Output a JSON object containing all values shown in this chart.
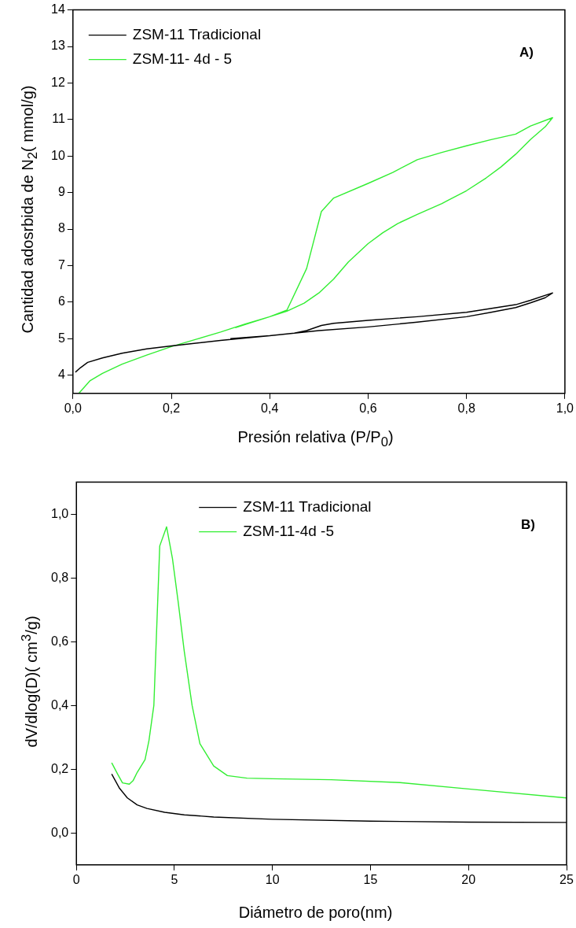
{
  "chart_data": [
    {
      "type": "line",
      "ylabel": "Cantidad adosrbida de N$_{2}$( mmol/g)",
      "xlabel": "Presión relativa (P/P$_{0}$)",
      "annotations": [
        "A)"
      ],
      "legend": "top left",
      "xlim": [
        0,
        1
      ],
      "xticks": [
        {
          "value": 0,
          "label": "0,0"
        },
        {
          "value": 0.2,
          "label": "0,2"
        },
        {
          "value": 0.4,
          "label": "0,4"
        },
        {
          "value": 0.6,
          "label": "0,6"
        },
        {
          "value": 0.8,
          "label": "0,8"
        },
        {
          "value": 1,
          "label": "1,0"
        }
      ],
      "ylim": [
        3.5,
        14
      ],
      "yticks": [
        4,
        5,
        6,
        7,
        8,
        9,
        10,
        11,
        12,
        13,
        14
      ],
      "series": [
        {
          "name": "ZSM-11 Tradicional",
          "color": "#000000",
          "x": [
            0.005,
            0.015,
            0.03,
            0.06,
            0.1,
            0.15,
            0.2,
            0.3,
            0.4,
            0.5,
            0.6,
            0.7,
            0.8,
            0.85,
            0.9,
            0.93,
            0.96,
            0.975,
            0.93,
            0.9,
            0.8,
            0.7,
            0.6,
            0.53,
            0.505,
            0.475,
            0.45,
            0.4,
            0.32
          ],
          "values": [
            4.08,
            4.2,
            4.35,
            4.47,
            4.6,
            4.72,
            4.8,
            4.95,
            5.08,
            5.22,
            5.32,
            5.45,
            5.6,
            5.72,
            5.85,
            5.98,
            6.12,
            6.25,
            6.05,
            5.93,
            5.72,
            5.6,
            5.5,
            5.42,
            5.36,
            5.22,
            5.15,
            5.08,
            5.0
          ]
        },
        {
          "name": "ZSM-11- 4d - 5",
          "color": "#33ee33",
          "x": [
            0.012,
            0.035,
            0.06,
            0.1,
            0.15,
            0.2,
            0.25,
            0.3,
            0.35,
            0.4,
            0.435,
            0.47,
            0.5,
            0.53,
            0.56,
            0.6,
            0.63,
            0.66,
            0.7,
            0.75,
            0.8,
            0.84,
            0.87,
            0.9,
            0.93,
            0.96,
            0.975,
            0.93,
            0.9,
            0.85,
            0.8,
            0.75,
            0.7,
            0.65,
            0.6,
            0.53,
            0.505,
            0.475,
            0.435,
            0.4,
            0.33
          ],
          "values": [
            3.5,
            3.85,
            4.05,
            4.3,
            4.55,
            4.78,
            4.98,
            5.18,
            5.4,
            5.6,
            5.75,
            5.97,
            6.25,
            6.63,
            7.1,
            7.6,
            7.9,
            8.15,
            8.4,
            8.7,
            9.05,
            9.4,
            9.7,
            10.05,
            10.45,
            10.8,
            11.05,
            10.82,
            10.6,
            10.45,
            10.28,
            10.1,
            9.9,
            9.55,
            9.25,
            8.85,
            8.48,
            6.92,
            5.78,
            5.6,
            5.3
          ]
        }
      ]
    },
    {
      "type": "line",
      "ylabel": "dV/dlog(D)( cm$^{3}$/g)",
      "xlabel": "Diámetro de poro(nm)",
      "annotations": [
        "B)"
      ],
      "legend": "top",
      "xlim": [
        0,
        25
      ],
      "xticks": [
        0,
        5,
        10,
        15,
        20,
        25
      ],
      "ylim": [
        -0.1,
        1.1
      ],
      "yticks": [
        {
          "value": 0,
          "label": "0,0"
        },
        {
          "value": 0.2,
          "label": "0,2"
        },
        {
          "value": 0.4,
          "label": "0,4"
        },
        {
          "value": 0.6,
          "label": "0,6"
        },
        {
          "value": 0.8,
          "label": "0,8"
        },
        {
          "value": 1,
          "label": "1,0"
        }
      ],
      "series": [
        {
          "name": "ZSM-11 Tradicional",
          "color": "#000000",
          "x": [
            1.8,
            2.2,
            2.6,
            3.1,
            3.6,
            4.5,
            5.5,
            7,
            10,
            15,
            20,
            25
          ],
          "values": [
            0.185,
            0.14,
            0.11,
            0.088,
            0.077,
            0.065,
            0.057,
            0.05,
            0.043,
            0.037,
            0.034,
            0.033
          ]
        },
        {
          "name": "ZSM-11-4d -5",
          "color": "#33ee33",
          "x": [
            1.8,
            2.1,
            2.35,
            2.7,
            2.9,
            3.1,
            3.5,
            3.7,
            3.95,
            4.25,
            4.6,
            4.9,
            5.2,
            5.5,
            5.9,
            6.3,
            7.0,
            7.7,
            8.7,
            10,
            13,
            16.5,
            20,
            25
          ],
          "values": [
            0.22,
            0.185,
            0.157,
            0.153,
            0.165,
            0.19,
            0.23,
            0.29,
            0.4,
            0.9,
            0.96,
            0.86,
            0.72,
            0.57,
            0.4,
            0.28,
            0.21,
            0.18,
            0.172,
            0.17,
            0.167,
            0.158,
            0.138,
            0.11
          ]
        }
      ]
    }
  ]
}
